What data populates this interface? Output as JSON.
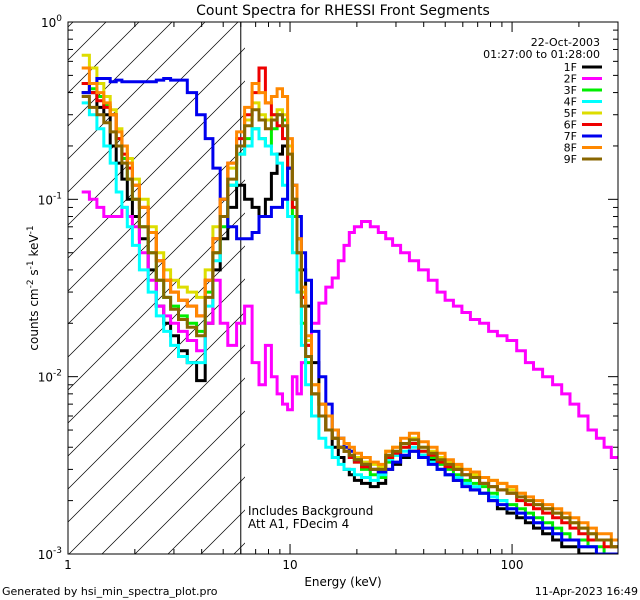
{
  "chart_data": {
    "type": "line",
    "title": "Count Spectra for RHESSI Front Segments",
    "xlabel": "Energy (keV)",
    "ylabel_main": "counts cm",
    "ylabel_exp1": "-2",
    "ylabel_mid": " s",
    "ylabel_exp2": "-1",
    "ylabel_end": " keV",
    "ylabel_exp3": "-1",
    "xscale": "log",
    "yscale": "log",
    "xlim": [
      1,
      300
    ],
    "ylim": [
      0.001,
      1
    ],
    "x_ticks": [
      {
        "value": 1,
        "label": "1"
      },
      {
        "value": 10,
        "label": "10"
      },
      {
        "value": 100,
        "label": "100"
      }
    ],
    "y_ticks": [
      {
        "value": 0.001,
        "base": "10",
        "exp": "-3"
      },
      {
        "value": 0.01,
        "base": "10",
        "exp": "-2"
      },
      {
        "value": 0.1,
        "base": "10",
        "exp": "-1"
      },
      {
        "value": 1,
        "base": "10",
        "exp": "0"
      }
    ],
    "shaded_region": {
      "x_from": 1,
      "x_to": 6,
      "style": "diagonal-hatch"
    },
    "vertical_line_x": 6,
    "legend_position": "top-right",
    "date": "22-Oct-2003",
    "time_range": "01:27:00 to 01:28:00",
    "annotations": [
      "Includes Background",
      "Att A1, FDecim 4"
    ],
    "footer_left": "Generated by hsi_min_spectra_plot.pro",
    "footer_right": "11-Apr-2023 16:49",
    "energies": [
      1.2,
      1.3,
      1.4,
      1.5,
      1.6,
      1.7,
      1.8,
      1.9,
      2.0,
      2.2,
      2.4,
      2.6,
      2.8,
      3.0,
      3.3,
      3.6,
      4.0,
      4.3,
      4.7,
      5.0,
      5.5,
      6.0,
      6.5,
      7.0,
      7.5,
      8.0,
      8.5,
      9.0,
      9.5,
      10.0,
      10.5,
      11.0,
      11.5,
      12.0,
      13.0,
      14.0,
      15.0,
      16.0,
      17.0,
      18.0,
      19.0,
      20.0,
      22.0,
      24.0,
      26.0,
      28.0,
      30.0,
      33.0,
      36.0,
      40.0,
      44.0,
      48.0,
      52.0,
      57.0,
      62.0,
      68.0,
      75.0,
      82.0,
      90.0,
      100.0,
      110.0,
      120.0,
      130.0,
      145.0,
      160.0,
      175.0,
      190.0,
      210.0,
      230.0,
      250.0,
      270.0,
      290.0
    ],
    "series": [
      {
        "name": "1F",
        "color": "#000000",
        "values": [
          0.4,
          0.4,
          0.33,
          0.3,
          0.2,
          0.16,
          0.13,
          0.1,
          0.08,
          0.06,
          0.04,
          0.025,
          0.02,
          0.017,
          0.014,
          0.012,
          0.0095,
          0.02,
          0.04,
          0.06,
          0.09,
          0.12,
          0.1,
          0.09,
          0.08,
          0.1,
          0.14,
          0.18,
          0.2,
          0.15,
          0.1,
          0.06,
          0.04,
          0.025,
          0.012,
          0.007,
          0.005,
          0.004,
          0.0035,
          0.003,
          0.0028,
          0.0026,
          0.0025,
          0.0024,
          0.0025,
          0.003,
          0.0032,
          0.0035,
          0.0038,
          0.0036,
          0.0034,
          0.003,
          0.0028,
          0.0026,
          0.0025,
          0.0023,
          0.0022,
          0.002,
          0.0018,
          0.0017,
          0.0016,
          0.0015,
          0.0014,
          0.0013,
          0.0012,
          0.0011,
          0.0011,
          0.001,
          0.001,
          0.001,
          0.001,
          0.001
        ]
      },
      {
        "name": "2F",
        "color": "#ff00ff",
        "values": [
          0.11,
          0.1,
          0.09,
          0.08,
          0.08,
          0.08,
          0.09,
          0.08,
          0.07,
          0.05,
          0.035,
          0.025,
          0.022,
          0.02,
          0.018,
          0.016,
          0.014,
          0.02,
          0.035,
          0.02,
          0.015,
          0.02,
          0.025,
          0.012,
          0.009,
          0.015,
          0.01,
          0.008,
          0.007,
          0.0065,
          0.01,
          0.008,
          0.012,
          0.015,
          0.02,
          0.026,
          0.032,
          0.036,
          0.045,
          0.055,
          0.065,
          0.07,
          0.075,
          0.07,
          0.065,
          0.06,
          0.055,
          0.05,
          0.045,
          0.04,
          0.035,
          0.03,
          0.027,
          0.025,
          0.023,
          0.021,
          0.02,
          0.018,
          0.017,
          0.016,
          0.014,
          0.012,
          0.011,
          0.01,
          0.009,
          0.008,
          0.007,
          0.006,
          0.005,
          0.0045,
          0.004,
          0.0035
        ]
      },
      {
        "name": "3F",
        "color": "#00ee00",
        "values": [
          0.45,
          0.42,
          0.38,
          0.34,
          0.3,
          0.22,
          0.17,
          0.13,
          0.1,
          0.07,
          0.05,
          0.035,
          0.028,
          0.025,
          0.022,
          0.02,
          0.018,
          0.03,
          0.05,
          0.07,
          0.12,
          0.18,
          0.22,
          0.25,
          0.22,
          0.2,
          0.25,
          0.3,
          0.28,
          0.15,
          0.08,
          0.04,
          0.02,
          0.012,
          0.008,
          0.006,
          0.005,
          0.0045,
          0.004,
          0.0038,
          0.0035,
          0.0033,
          0.003,
          0.0028,
          0.0027,
          0.0033,
          0.0036,
          0.004,
          0.0042,
          0.0038,
          0.0035,
          0.0032,
          0.003,
          0.0028,
          0.0026,
          0.0025,
          0.0024,
          0.0022,
          0.002,
          0.0019,
          0.0018,
          0.0017,
          0.0016,
          0.0015,
          0.0014,
          0.0013,
          0.0012,
          0.0012,
          0.0011,
          0.0011,
          0.001,
          0.001
        ]
      },
      {
        "name": "4F",
        "color": "#00ffff",
        "values": [
          0.35,
          0.3,
          0.25,
          0.2,
          0.16,
          0.11,
          0.09,
          0.07,
          0.055,
          0.04,
          0.03,
          0.022,
          0.018,
          0.015,
          0.013,
          0.012,
          0.012,
          0.025,
          0.045,
          0.08,
          0.12,
          0.18,
          0.2,
          0.25,
          0.22,
          0.2,
          0.18,
          0.16,
          0.12,
          0.08,
          0.05,
          0.03,
          0.015,
          0.009,
          0.006,
          0.0045,
          0.004,
          0.0035,
          0.0032,
          0.003,
          0.003,
          0.0028,
          0.0027,
          0.0026,
          0.0028,
          0.0034,
          0.0036,
          0.0038,
          0.004,
          0.0036,
          0.0033,
          0.003,
          0.0028,
          0.0027,
          0.0025,
          0.0024,
          0.0022,
          0.0021,
          0.002,
          0.0018,
          0.0017,
          0.0016,
          0.0015,
          0.0014,
          0.0013,
          0.0012,
          0.0012,
          0.0011,
          0.0011,
          0.001,
          0.001,
          0.001
        ]
      },
      {
        "name": "5F",
        "color": "#dddd00",
        "values": [
          0.65,
          0.55,
          0.45,
          0.38,
          0.32,
          0.25,
          0.2,
          0.17,
          0.13,
          0.1,
          0.07,
          0.05,
          0.04,
          0.035,
          0.032,
          0.03,
          0.028,
          0.04,
          0.07,
          0.1,
          0.15,
          0.2,
          0.28,
          0.35,
          0.3,
          0.28,
          0.3,
          0.32,
          0.3,
          0.2,
          0.12,
          0.06,
          0.03,
          0.016,
          0.009,
          0.007,
          0.006,
          0.005,
          0.0045,
          0.004,
          0.0038,
          0.0035,
          0.0033,
          0.0032,
          0.0031,
          0.0038,
          0.004,
          0.0042,
          0.0045,
          0.004,
          0.0038,
          0.0035,
          0.0033,
          0.0031,
          0.003,
          0.0028,
          0.0027,
          0.0026,
          0.0025,
          0.0023,
          0.0022,
          0.002,
          0.0019,
          0.0018,
          0.0017,
          0.0016,
          0.0015,
          0.0014,
          0.0013,
          0.0012,
          0.0012,
          0.0011
        ]
      },
      {
        "name": "6F",
        "color": "#ee0000",
        "values": [
          0.45,
          0.4,
          0.36,
          0.33,
          0.3,
          0.22,
          0.18,
          0.15,
          0.12,
          0.09,
          0.065,
          0.045,
          0.035,
          0.03,
          0.027,
          0.025,
          0.022,
          0.035,
          0.06,
          0.1,
          0.16,
          0.22,
          0.3,
          0.4,
          0.55,
          0.35,
          0.3,
          0.26,
          0.22,
          0.15,
          0.09,
          0.05,
          0.028,
          0.015,
          0.008,
          0.006,
          0.005,
          0.0045,
          0.004,
          0.0038,
          0.0035,
          0.0033,
          0.0031,
          0.003,
          0.0029,
          0.0035,
          0.0037,
          0.004,
          0.0042,
          0.0038,
          0.0036,
          0.0033,
          0.0031,
          0.003,
          0.0028,
          0.0027,
          0.0025,
          0.0024,
          0.0023,
          0.0022,
          0.002,
          0.0019,
          0.0018,
          0.0017,
          0.0016,
          0.0015,
          0.0014,
          0.0013,
          0.0012,
          0.0012,
          0.0011,
          0.0011
        ]
      },
      {
        "name": "7F",
        "color": "#0000ee",
        "values": [
          0.4,
          0.45,
          0.48,
          0.48,
          0.46,
          0.47,
          0.46,
          0.46,
          0.46,
          0.46,
          0.46,
          0.47,
          0.48,
          0.47,
          0.47,
          0.4,
          0.3,
          0.22,
          0.15,
          0.1,
          0.07,
          0.06,
          0.06,
          0.065,
          0.08,
          0.08,
          0.09,
          0.09,
          0.1,
          0.15,
          0.12,
          0.08,
          0.05,
          0.035,
          0.018,
          0.01,
          0.007,
          0.005,
          0.0045,
          0.004,
          0.0038,
          0.0034,
          0.0032,
          0.003,
          0.0029,
          0.003,
          0.0033,
          0.0036,
          0.0038,
          0.0035,
          0.0032,
          0.003,
          0.0028,
          0.0026,
          0.0024,
          0.0023,
          0.0022,
          0.002,
          0.0019,
          0.0018,
          0.0017,
          0.0016,
          0.0015,
          0.0014,
          0.0013,
          0.0012,
          0.0012,
          0.0011,
          0.0011,
          0.001,
          0.001,
          0.001
        ]
      },
      {
        "name": "8F",
        "color": "#ff8800",
        "values": [
          0.55,
          0.45,
          0.4,
          0.35,
          0.3,
          0.24,
          0.2,
          0.16,
          0.12,
          0.09,
          0.065,
          0.045,
          0.035,
          0.03,
          0.027,
          0.025,
          0.022,
          0.035,
          0.06,
          0.1,
          0.16,
          0.24,
          0.33,
          0.45,
          0.4,
          0.35,
          0.38,
          0.42,
          0.38,
          0.22,
          0.12,
          0.06,
          0.032,
          0.017,
          0.009,
          0.007,
          0.006,
          0.005,
          0.0045,
          0.0042,
          0.004,
          0.0037,
          0.0035,
          0.0033,
          0.0032,
          0.0038,
          0.004,
          0.0045,
          0.0048,
          0.0043,
          0.004,
          0.0037,
          0.0034,
          0.0032,
          0.003,
          0.0029,
          0.0027,
          0.0026,
          0.0025,
          0.0024,
          0.0022,
          0.0021,
          0.002,
          0.0019,
          0.0018,
          0.0017,
          0.0016,
          0.0015,
          0.0014,
          0.0013,
          0.0013,
          0.0012
        ]
      },
      {
        "name": "9F",
        "color": "#886600",
        "values": [
          0.38,
          0.33,
          0.3,
          0.27,
          0.24,
          0.2,
          0.16,
          0.13,
          0.1,
          0.07,
          0.05,
          0.035,
          0.028,
          0.024,
          0.021,
          0.019,
          0.017,
          0.028,
          0.05,
          0.08,
          0.13,
          0.2,
          0.26,
          0.32,
          0.28,
          0.25,
          0.28,
          0.3,
          0.26,
          0.18,
          0.1,
          0.05,
          0.025,
          0.013,
          0.008,
          0.006,
          0.005,
          0.0045,
          0.004,
          0.0038,
          0.0036,
          0.0034,
          0.0032,
          0.003,
          0.003,
          0.0036,
          0.0038,
          0.0042,
          0.0044,
          0.004,
          0.0037,
          0.0034,
          0.0032,
          0.003,
          0.0028,
          0.0027,
          0.0025,
          0.0024,
          0.0023,
          0.0022,
          0.0021,
          0.002,
          0.0019,
          0.0018,
          0.0017,
          0.0016,
          0.0015,
          0.0014,
          0.0013,
          0.0012,
          0.0012,
          0.0011
        ]
      }
    ]
  }
}
